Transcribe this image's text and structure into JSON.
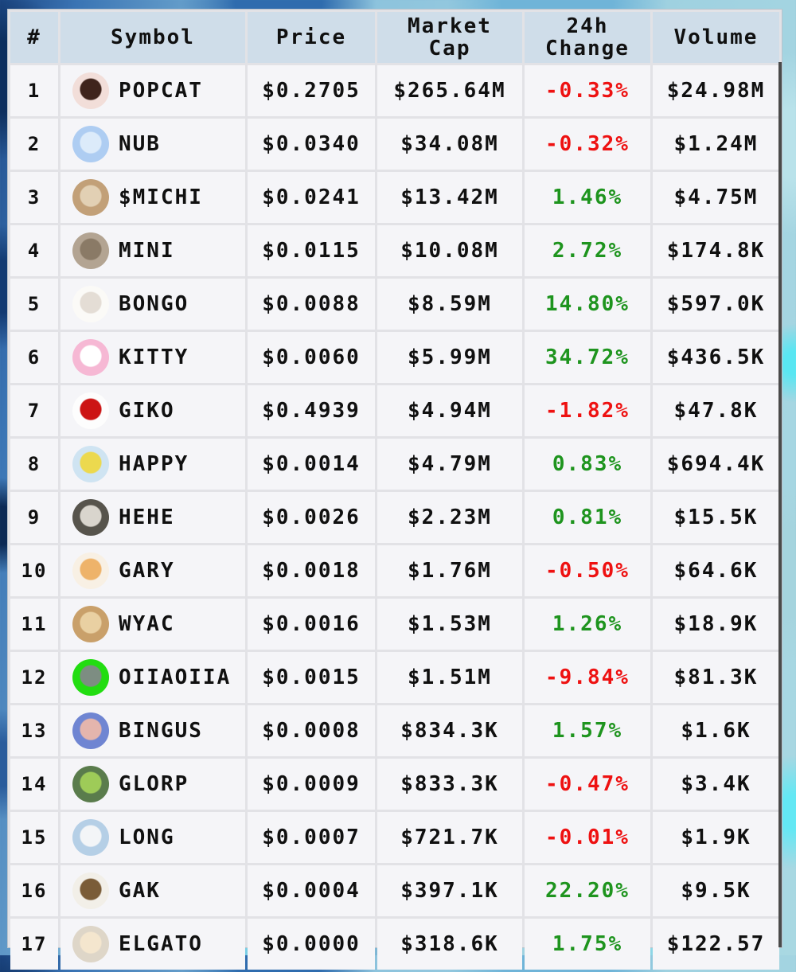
{
  "colors": {
    "up": "#1e941e",
    "down": "#ee1111",
    "header_bg": "#cfdde9",
    "row_bg": "#f5f5f8",
    "gap_bg": "#e2e2e6",
    "text": "#101010",
    "table_border": "#4a4a4a"
  },
  "table": {
    "columns": [
      {
        "id": "rank",
        "lines": [
          "#"
        ]
      },
      {
        "id": "symbol",
        "lines": [
          "Symbol"
        ]
      },
      {
        "id": "price",
        "lines": [
          "Price"
        ]
      },
      {
        "id": "market-cap",
        "lines": [
          "Market",
          "Cap"
        ]
      },
      {
        "id": "change-24h",
        "lines": [
          "24h",
          "Change"
        ]
      },
      {
        "id": "volume",
        "lines": [
          "Volume"
        ]
      }
    ],
    "rows": [
      {
        "rank": "1",
        "symbol": "POPCAT",
        "price": "$0.2705",
        "market_cap": "$265.64M",
        "change_24h": "-0.33%",
        "dir": "down",
        "volume": "$24.98M",
        "icon": {
          "name": "popcat-icon",
          "bg": "#f2ded9",
          "fg": "#3f241c"
        }
      },
      {
        "rank": "2",
        "symbol": "NUB",
        "price": "$0.0340",
        "market_cap": "$34.08M",
        "change_24h": "-0.32%",
        "dir": "down",
        "volume": "$1.24M",
        "icon": {
          "name": "nub-icon",
          "bg": "#aecdf2",
          "fg": "#dcebfa"
        }
      },
      {
        "rank": "3",
        "symbol": "$MICHI",
        "price": "$0.0241",
        "market_cap": "$13.42M",
        "change_24h": "1.46%",
        "dir": "up",
        "volume": "$4.75M",
        "icon": {
          "name": "michi-icon",
          "bg": "#c2a078",
          "fg": "#e2d0b4"
        }
      },
      {
        "rank": "4",
        "symbol": "MINI",
        "price": "$0.0115",
        "market_cap": "$10.08M",
        "change_24h": "2.72%",
        "dir": "up",
        "volume": "$174.8K",
        "icon": {
          "name": "mini-icon",
          "bg": "#b3a492",
          "fg": "#8a7a66"
        }
      },
      {
        "rank": "5",
        "symbol": "BONGO",
        "price": "$0.0088",
        "market_cap": "$8.59M",
        "change_24h": "14.80%",
        "dir": "up",
        "volume": "$597.0K",
        "icon": {
          "name": "bongo-icon",
          "bg": "#fbfaf7",
          "fg": "#e4ddd5"
        }
      },
      {
        "rank": "6",
        "symbol": "KITTY",
        "price": "$0.0060",
        "market_cap": "$5.99M",
        "change_24h": "34.72%",
        "dir": "up",
        "volume": "$436.5K",
        "icon": {
          "name": "kitty-icon",
          "bg": "#f6b8d4",
          "fg": "#ffffff"
        }
      },
      {
        "rank": "7",
        "symbol": "GIKO",
        "price": "$0.4939",
        "market_cap": "$4.94M",
        "change_24h": "-1.82%",
        "dir": "down",
        "volume": "$47.8K",
        "icon": {
          "name": "giko-icon",
          "bg": "#fdfdfd",
          "fg": "#cc1414"
        }
      },
      {
        "rank": "8",
        "symbol": "HAPPY",
        "price": "$0.0014",
        "market_cap": "$4.79M",
        "change_24h": "0.83%",
        "dir": "up",
        "volume": "$694.4K",
        "icon": {
          "name": "happy-icon",
          "bg": "#cfe4f2",
          "fg": "#ecd94e"
        }
      },
      {
        "rank": "9",
        "symbol": "HEHE",
        "price": "$0.0026",
        "market_cap": "$2.23M",
        "change_24h": "0.81%",
        "dir": "up",
        "volume": "$15.5K",
        "icon": {
          "name": "hehe-icon",
          "bg": "#57544c",
          "fg": "#d9d5cd"
        }
      },
      {
        "rank": "10",
        "symbol": "GARY",
        "price": "$0.0018",
        "market_cap": "$1.76M",
        "change_24h": "-0.50%",
        "dir": "down",
        "volume": "$64.6K",
        "icon": {
          "name": "gary-icon",
          "bg": "#f8f0e4",
          "fg": "#eeb36a"
        }
      },
      {
        "rank": "11",
        "symbol": "WYAC",
        "price": "$0.0016",
        "market_cap": "$1.53M",
        "change_24h": "1.26%",
        "dir": "up",
        "volume": "$18.9K",
        "icon": {
          "name": "wyac-icon",
          "bg": "#c9a06a",
          "fg": "#e9d0a2"
        }
      },
      {
        "rank": "12",
        "symbol": "OIIAOIIA",
        "price": "$0.0015",
        "market_cap": "$1.51M",
        "change_24h": "-9.84%",
        "dir": "down",
        "volume": "$81.3K",
        "icon": {
          "name": "oiiaoiia-icon",
          "bg": "#22dd11",
          "fg": "#7d8d82"
        }
      },
      {
        "rank": "13",
        "symbol": "BINGUS",
        "price": "$0.0008",
        "market_cap": "$834.3K",
        "change_24h": "1.57%",
        "dir": "up",
        "volume": "$1.6K",
        "icon": {
          "name": "bingus-icon",
          "bg": "#6f85d2",
          "fg": "#e4b5ad"
        }
      },
      {
        "rank": "14",
        "symbol": "GLORP",
        "price": "$0.0009",
        "market_cap": "$833.3K",
        "change_24h": "-0.47%",
        "dir": "down",
        "volume": "$3.4K",
        "icon": {
          "name": "glorp-icon",
          "bg": "#5a7c4c",
          "fg": "#9ecb58"
        }
      },
      {
        "rank": "15",
        "symbol": "LONG",
        "price": "$0.0007",
        "market_cap": "$721.7K",
        "change_24h": "-0.01%",
        "dir": "down",
        "volume": "$1.9K",
        "icon": {
          "name": "long-icon",
          "bg": "#b5cfe6",
          "fg": "#f3f5f7"
        }
      },
      {
        "rank": "16",
        "symbol": "GAK",
        "price": "$0.0004",
        "market_cap": "$397.1K",
        "change_24h": "22.20%",
        "dir": "up",
        "volume": "$9.5K",
        "icon": {
          "name": "gak-icon",
          "bg": "#f2efe8",
          "fg": "#7a5c38"
        }
      },
      {
        "rank": "17",
        "symbol": "ELGATO",
        "price": "$0.0000",
        "market_cap": "$318.6K",
        "change_24h": "1.75%",
        "dir": "up",
        "volume": "$122.57",
        "icon": {
          "name": "elgato-icon",
          "bg": "#ded6c8",
          "fg": "#f4e6ce"
        }
      }
    ]
  }
}
